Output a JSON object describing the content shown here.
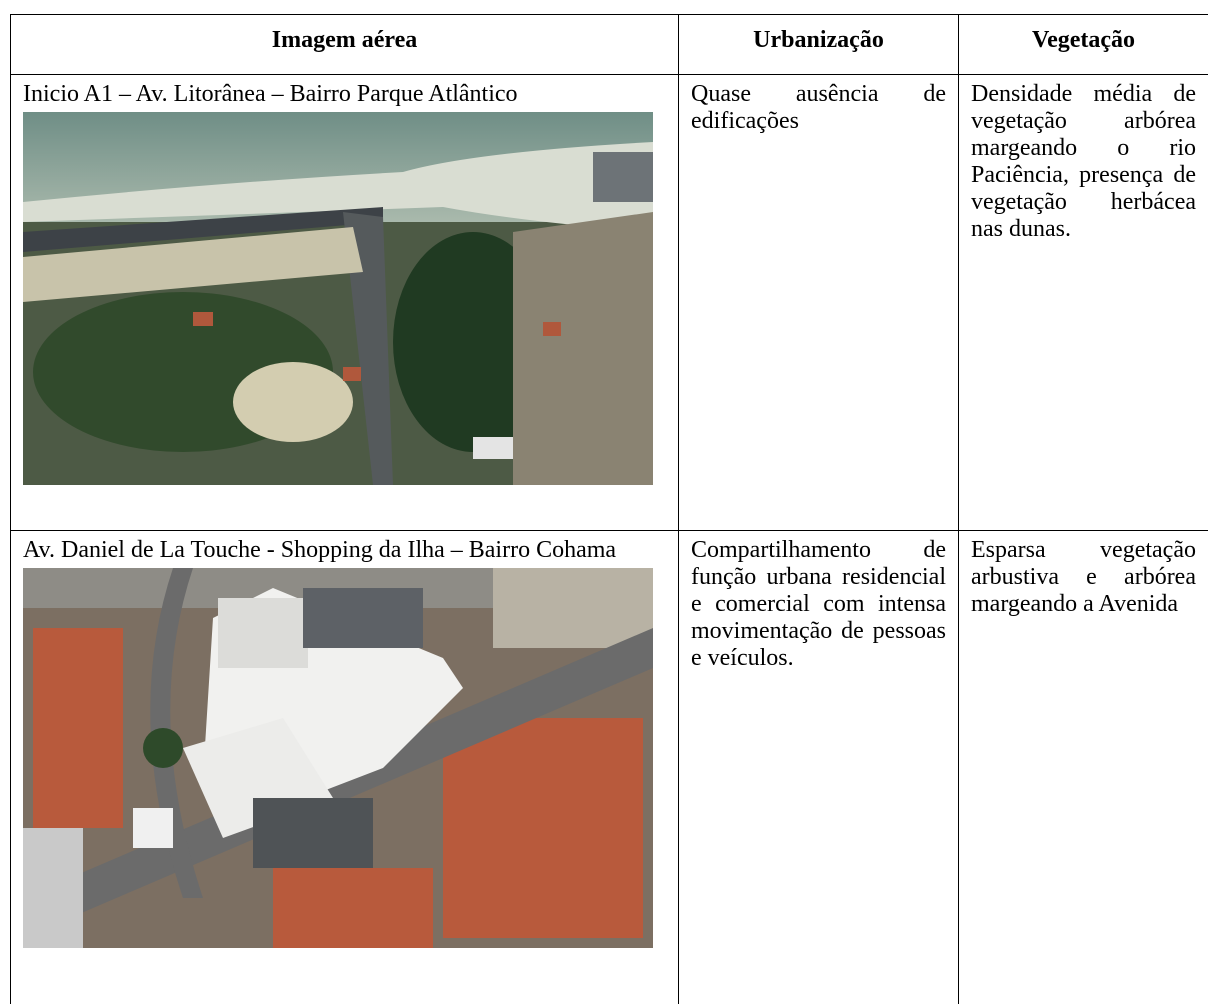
{
  "header": {
    "columns": [
      "Imagem aérea",
      "Urbanização",
      "Vegetação"
    ]
  },
  "rows": [
    {
      "caption": "Inicio A1 – Av. Litorânea – Bairro Parque Atlântico",
      "urbanizacao": "Quase ausência de edificações",
      "vegetacao": "Densidade média de vegetação arbórea margeando o rio Paciência, presença de vegetação herbácea nas dunas."
    },
    {
      "caption": "Av. Daniel de La Touche - Shopping da Ilha – Bairro Cohama",
      "urbanizacao": "Compartilhamento de função urbana residencial e comercial com intensa movimentação de pessoas e veículos.",
      "vegetacao": "Esparsa vegetação arbustiva e arbórea margeando a Avenida"
    }
  ]
}
